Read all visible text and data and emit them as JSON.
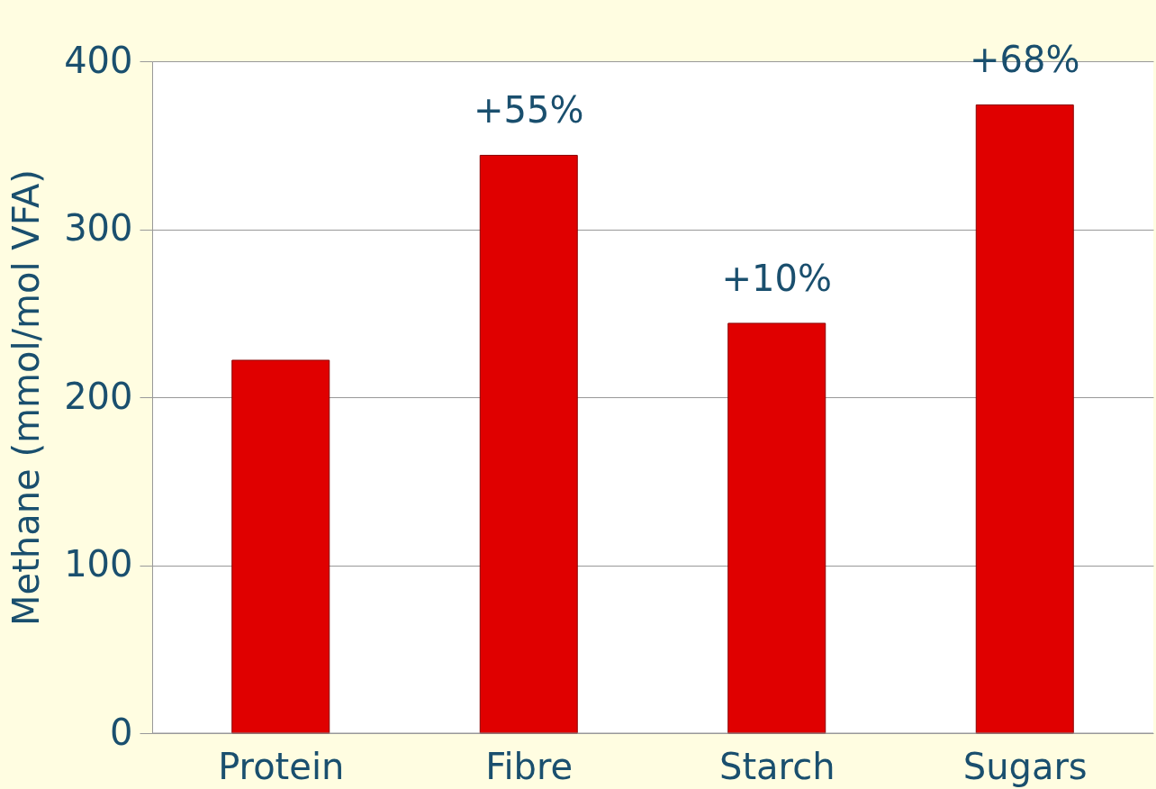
{
  "chart_data": {
    "type": "bar",
    "ylabel": "Methane (mmol/mol VFA)",
    "categories": [
      "Protein",
      "Fibre",
      "Starch",
      "Sugars"
    ],
    "values": [
      222,
      344,
      244,
      374
    ],
    "color": "#e00000",
    "ylim": [
      0,
      400
    ],
    "yticks": [
      0,
      100,
      200,
      300,
      400
    ],
    "grid": "y",
    "annotations": [
      {
        "text": "+55%",
        "x": "Fibre",
        "y": 344
      },
      {
        "text": "+10%",
        "x": "Starch",
        "y": 244
      },
      {
        "text": "+68%",
        "x": "Sugars",
        "y": 374
      }
    ]
  }
}
